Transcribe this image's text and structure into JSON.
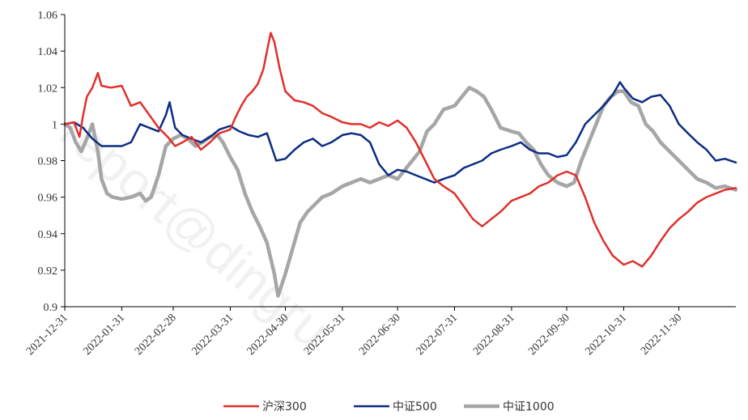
{
  "chart_data": {
    "type": "line",
    "title": "",
    "xlabel": "",
    "ylabel": "",
    "ylim": [
      0.9,
      1.06
    ],
    "yticks": [
      "0.9",
      "0.92",
      "0.94",
      "0.96",
      "0.98",
      "1",
      "1.02",
      "1.04",
      "1.06"
    ],
    "x_start": "2021-12-31",
    "x_end": "2022-12-31",
    "xticks": [
      "2021-12-31",
      "2022-01-31",
      "2022-02-28",
      "2022-03-31",
      "2022-04-30",
      "2022-05-31",
      "2022-06-30",
      "2022-07-31",
      "2022-08-31",
      "2022-09-30",
      "2022-10-31",
      "2022-11-30"
    ],
    "grid": false,
    "legend_position": "bottom",
    "watermark": "report@dingru",
    "series": [
      {
        "name": "沪深300",
        "color": "#e0302b",
        "width": 2.5,
        "points": [
          [
            "2021-12-31",
            1.0
          ],
          [
            "2022-01-05",
            1.001
          ],
          [
            "2022-01-08",
            0.993
          ],
          [
            "2022-01-10",
            1.005
          ],
          [
            "2022-01-12",
            1.015
          ],
          [
            "2022-01-15",
            1.02
          ],
          [
            "2022-01-18",
            1.028
          ],
          [
            "2022-01-20",
            1.021
          ],
          [
            "2022-01-25",
            1.02
          ],
          [
            "2022-01-31",
            1.021
          ],
          [
            "2022-02-05",
            1.01
          ],
          [
            "2022-02-10",
            1.012
          ],
          [
            "2022-02-15",
            1.005
          ],
          [
            "2022-02-20",
            0.998
          ],
          [
            "2022-02-25",
            0.993
          ],
          [
            "2022-03-01",
            0.988
          ],
          [
            "2022-03-05",
            0.99
          ],
          [
            "2022-03-10",
            0.993
          ],
          [
            "2022-03-15",
            0.986
          ],
          [
            "2022-03-20",
            0.99
          ],
          [
            "2022-03-25",
            0.995
          ],
          [
            "2022-03-31",
            0.997
          ],
          [
            "2022-04-03",
            1.004
          ],
          [
            "2022-04-06",
            1.01
          ],
          [
            "2022-04-09",
            1.015
          ],
          [
            "2022-04-12",
            1.018
          ],
          [
            "2022-04-15",
            1.022
          ],
          [
            "2022-04-18",
            1.03
          ],
          [
            "2022-04-20",
            1.04
          ],
          [
            "2022-04-22",
            1.05
          ],
          [
            "2022-04-24",
            1.045
          ],
          [
            "2022-04-27",
            1.03
          ],
          [
            "2022-04-30",
            1.018
          ],
          [
            "2022-05-05",
            1.013
          ],
          [
            "2022-05-10",
            1.012
          ],
          [
            "2022-05-15",
            1.01
          ],
          [
            "2022-05-20",
            1.006
          ],
          [
            "2022-05-25",
            1.004
          ],
          [
            "2022-05-31",
            1.001
          ],
          [
            "2022-06-05",
            1.0
          ],
          [
            "2022-06-10",
            1.0
          ],
          [
            "2022-06-15",
            0.998
          ],
          [
            "2022-06-20",
            1.001
          ],
          [
            "2022-06-25",
            0.999
          ],
          [
            "2022-06-30",
            1.002
          ],
          [
            "2022-07-05",
            0.998
          ],
          [
            "2022-07-10",
            0.99
          ],
          [
            "2022-07-15",
            0.98
          ],
          [
            "2022-07-20",
            0.97
          ],
          [
            "2022-07-25",
            0.966
          ],
          [
            "2022-07-31",
            0.962
          ],
          [
            "2022-08-05",
            0.955
          ],
          [
            "2022-08-10",
            0.948
          ],
          [
            "2022-08-15",
            0.944
          ],
          [
            "2022-08-20",
            0.948
          ],
          [
            "2022-08-25",
            0.952
          ],
          [
            "2022-08-31",
            0.958
          ],
          [
            "2022-09-05",
            0.96
          ],
          [
            "2022-09-10",
            0.962
          ],
          [
            "2022-09-15",
            0.966
          ],
          [
            "2022-09-20",
            0.968
          ],
          [
            "2022-09-25",
            0.972
          ],
          [
            "2022-09-30",
            0.974
          ],
          [
            "2022-10-05",
            0.972
          ],
          [
            "2022-10-10",
            0.96
          ],
          [
            "2022-10-15",
            0.946
          ],
          [
            "2022-10-20",
            0.936
          ],
          [
            "2022-10-25",
            0.928
          ],
          [
            "2022-10-31",
            0.923
          ],
          [
            "2022-11-05",
            0.925
          ],
          [
            "2022-11-10",
            0.922
          ],
          [
            "2022-11-15",
            0.928
          ],
          [
            "2022-11-20",
            0.936
          ],
          [
            "2022-11-25",
            0.943
          ],
          [
            "2022-11-30",
            0.948
          ],
          [
            "2022-12-05",
            0.952
          ],
          [
            "2022-12-10",
            0.957
          ],
          [
            "2022-12-15",
            0.96
          ],
          [
            "2022-12-20",
            0.962
          ],
          [
            "2022-12-25",
            0.964
          ],
          [
            "2022-12-31",
            0.965
          ]
        ]
      },
      {
        "name": "中证500",
        "color": "#0c2c84",
        "width": 2.5,
        "points": [
          [
            "2021-12-31",
            1.0
          ],
          [
            "2022-01-05",
            1.001
          ],
          [
            "2022-01-10",
            0.998
          ],
          [
            "2022-01-15",
            0.992
          ],
          [
            "2022-01-20",
            0.988
          ],
          [
            "2022-01-25",
            0.988
          ],
          [
            "2022-01-31",
            0.988
          ],
          [
            "2022-02-05",
            0.99
          ],
          [
            "2022-02-10",
            1.0
          ],
          [
            "2022-02-15",
            0.998
          ],
          [
            "2022-02-20",
            0.996
          ],
          [
            "2022-02-24",
            1.005
          ],
          [
            "2022-02-26",
            1.012
          ],
          [
            "2022-03-01",
            0.998
          ],
          [
            "2022-03-05",
            0.994
          ],
          [
            "2022-03-10",
            0.992
          ],
          [
            "2022-03-15",
            0.99
          ],
          [
            "2022-03-20",
            0.993
          ],
          [
            "2022-03-25",
            0.997
          ],
          [
            "2022-03-31",
            0.999
          ],
          [
            "2022-04-05",
            0.996
          ],
          [
            "2022-04-10",
            0.994
          ],
          [
            "2022-04-15",
            0.993
          ],
          [
            "2022-04-20",
            0.995
          ],
          [
            "2022-04-25",
            0.98
          ],
          [
            "2022-04-30",
            0.981
          ],
          [
            "2022-05-05",
            0.986
          ],
          [
            "2022-05-10",
            0.99
          ],
          [
            "2022-05-15",
            0.992
          ],
          [
            "2022-05-20",
            0.988
          ],
          [
            "2022-05-25",
            0.99
          ],
          [
            "2022-05-31",
            0.994
          ],
          [
            "2022-06-05",
            0.995
          ],
          [
            "2022-06-10",
            0.994
          ],
          [
            "2022-06-15",
            0.99
          ],
          [
            "2022-06-20",
            0.978
          ],
          [
            "2022-06-25",
            0.972
          ],
          [
            "2022-06-30",
            0.975
          ],
          [
            "2022-07-05",
            0.974
          ],
          [
            "2022-07-10",
            0.972
          ],
          [
            "2022-07-15",
            0.97
          ],
          [
            "2022-07-20",
            0.968
          ],
          [
            "2022-07-25",
            0.97
          ],
          [
            "2022-07-31",
            0.972
          ],
          [
            "2022-08-05",
            0.976
          ],
          [
            "2022-08-10",
            0.978
          ],
          [
            "2022-08-15",
            0.98
          ],
          [
            "2022-08-20",
            0.984
          ],
          [
            "2022-08-25",
            0.986
          ],
          [
            "2022-08-31",
            0.988
          ],
          [
            "2022-09-05",
            0.99
          ],
          [
            "2022-09-10",
            0.986
          ],
          [
            "2022-09-15",
            0.984
          ],
          [
            "2022-09-20",
            0.984
          ],
          [
            "2022-09-25",
            0.982
          ],
          [
            "2022-09-30",
            0.983
          ],
          [
            "2022-10-05",
            0.99
          ],
          [
            "2022-10-10",
            1.0
          ],
          [
            "2022-10-15",
            1.005
          ],
          [
            "2022-10-20",
            1.01
          ],
          [
            "2022-10-25",
            1.016
          ],
          [
            "2022-10-29",
            1.023
          ],
          [
            "2022-10-31",
            1.02
          ],
          [
            "2022-11-05",
            1.014
          ],
          [
            "2022-11-10",
            1.012
          ],
          [
            "2022-11-15",
            1.015
          ],
          [
            "2022-11-20",
            1.016
          ],
          [
            "2022-11-25",
            1.01
          ],
          [
            "2022-11-30",
            1.0
          ],
          [
            "2022-12-05",
            0.995
          ],
          [
            "2022-12-10",
            0.99
          ],
          [
            "2022-12-15",
            0.986
          ],
          [
            "2022-12-20",
            0.98
          ],
          [
            "2022-12-25",
            0.981
          ],
          [
            "2022-12-31",
            0.979
          ]
        ]
      },
      {
        "name": "中证1000",
        "color": "#a6a6a6",
        "width": 4.5,
        "points": [
          [
            "2021-12-31",
            1.0
          ],
          [
            "2022-01-03",
            0.998
          ],
          [
            "2022-01-06",
            0.99
          ],
          [
            "2022-01-09",
            0.985
          ],
          [
            "2022-01-12",
            0.992
          ],
          [
            "2022-01-15",
            1.0
          ],
          [
            "2022-01-18",
            0.985
          ],
          [
            "2022-01-20",
            0.97
          ],
          [
            "2022-01-23",
            0.962
          ],
          [
            "2022-01-26",
            0.96
          ],
          [
            "2022-01-31",
            0.959
          ],
          [
            "2022-02-05",
            0.96
          ],
          [
            "2022-02-10",
            0.962
          ],
          [
            "2022-02-13",
            0.958
          ],
          [
            "2022-02-16",
            0.96
          ],
          [
            "2022-02-20",
            0.972
          ],
          [
            "2022-02-24",
            0.988
          ],
          [
            "2022-02-28",
            0.992
          ],
          [
            "2022-03-04",
            0.994
          ],
          [
            "2022-03-08",
            0.992
          ],
          [
            "2022-03-12",
            0.988
          ],
          [
            "2022-03-16",
            0.99
          ],
          [
            "2022-03-20",
            0.993
          ],
          [
            "2022-03-24",
            0.994
          ],
          [
            "2022-03-27",
            0.99
          ],
          [
            "2022-03-31",
            0.982
          ],
          [
            "2022-04-04",
            0.975
          ],
          [
            "2022-04-08",
            0.962
          ],
          [
            "2022-04-12",
            0.952
          ],
          [
            "2022-04-16",
            0.944
          ],
          [
            "2022-04-20",
            0.935
          ],
          [
            "2022-04-24",
            0.918
          ],
          [
            "2022-04-26",
            0.906
          ],
          [
            "2022-04-28",
            0.912
          ],
          [
            "2022-04-30",
            0.918
          ],
          [
            "2022-05-04",
            0.932
          ],
          [
            "2022-05-08",
            0.946
          ],
          [
            "2022-05-12",
            0.952
          ],
          [
            "2022-05-16",
            0.956
          ],
          [
            "2022-05-20",
            0.96
          ],
          [
            "2022-05-25",
            0.962
          ],
          [
            "2022-05-31",
            0.966
          ],
          [
            "2022-06-05",
            0.968
          ],
          [
            "2022-06-10",
            0.97
          ],
          [
            "2022-06-15",
            0.968
          ],
          [
            "2022-06-20",
            0.97
          ],
          [
            "2022-06-25",
            0.972
          ],
          [
            "2022-06-30",
            0.97
          ],
          [
            "2022-07-04",
            0.975
          ],
          [
            "2022-07-08",
            0.98
          ],
          [
            "2022-07-12",
            0.985
          ],
          [
            "2022-07-16",
            0.996
          ],
          [
            "2022-07-20",
            1.0
          ],
          [
            "2022-07-25",
            1.008
          ],
          [
            "2022-07-31",
            1.01
          ],
          [
            "2022-08-04",
            1.015
          ],
          [
            "2022-08-08",
            1.02
          ],
          [
            "2022-08-12",
            1.018
          ],
          [
            "2022-08-16",
            1.015
          ],
          [
            "2022-08-20",
            1.008
          ],
          [
            "2022-08-25",
            0.998
          ],
          [
            "2022-08-31",
            0.996
          ],
          [
            "2022-09-04",
            0.995
          ],
          [
            "2022-09-08",
            0.99
          ],
          [
            "2022-09-12",
            0.986
          ],
          [
            "2022-09-16",
            0.978
          ],
          [
            "2022-09-20",
            0.972
          ],
          [
            "2022-09-25",
            0.968
          ],
          [
            "2022-09-30",
            0.966
          ],
          [
            "2022-10-04",
            0.968
          ],
          [
            "2022-10-08",
            0.98
          ],
          [
            "2022-10-12",
            0.99
          ],
          [
            "2022-10-16",
            1.0
          ],
          [
            "2022-10-20",
            1.01
          ],
          [
            "2022-10-24",
            1.015
          ],
          [
            "2022-10-28",
            1.018
          ],
          [
            "2022-10-31",
            1.018
          ],
          [
            "2022-11-04",
            1.012
          ],
          [
            "2022-11-08",
            1.01
          ],
          [
            "2022-11-12",
            1.0
          ],
          [
            "2022-11-16",
            0.996
          ],
          [
            "2022-11-20",
            0.99
          ],
          [
            "2022-11-25",
            0.985
          ],
          [
            "2022-11-30",
            0.98
          ],
          [
            "2022-12-05",
            0.975
          ],
          [
            "2022-12-10",
            0.97
          ],
          [
            "2022-12-15",
            0.968
          ],
          [
            "2022-12-20",
            0.965
          ],
          [
            "2022-12-25",
            0.966
          ],
          [
            "2022-12-31",
            0.964
          ]
        ]
      }
    ]
  }
}
